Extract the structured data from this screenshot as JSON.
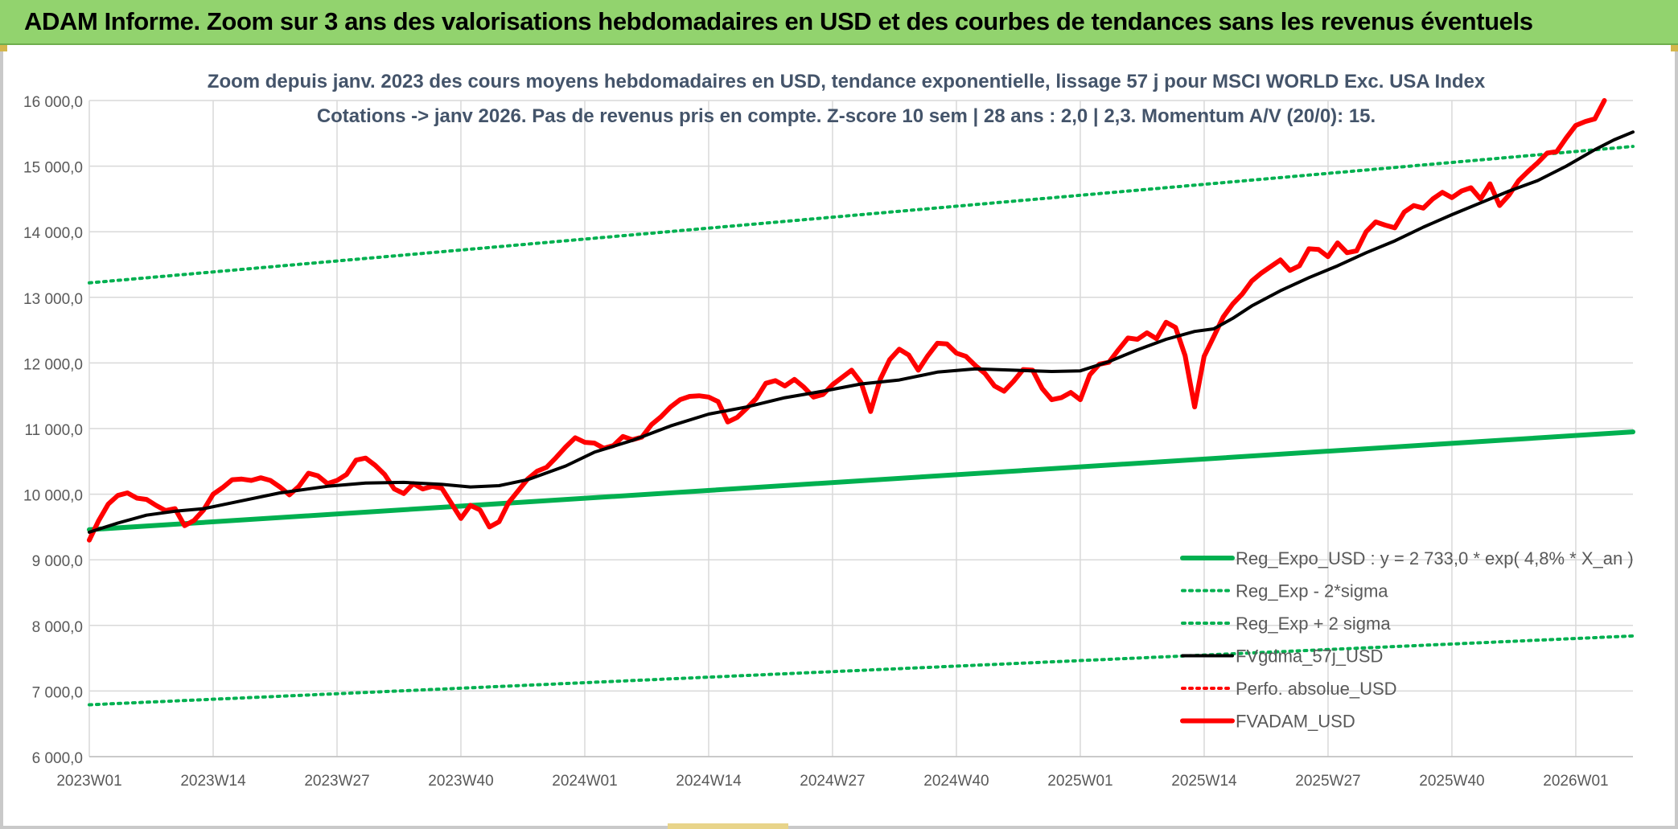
{
  "banner": {
    "title": "ADAM Informe. Zoom sur 3 ans des valorisations hebdomadaires en USD et des courbes de tendances sans les revenus éventuels"
  },
  "colors": {
    "banner_bg": "#92d36e",
    "regression": "#00b050",
    "smoothed": "#000000",
    "valuation": "#ff0000",
    "grid": "#d9d9d9",
    "axis_text": "#595959",
    "title_text": "#44546a"
  },
  "chart_data": {
    "type": "line",
    "title_line1": "Zoom depuis janv. 2023 des cours moyens hebdomadaires en USD, tendance exponentielle, lissage 57 j pour MSCI WORLD Exc. USA Index",
    "title_line2": "Cotations -> janv 2026. Pas de revenus pris en compte. Z-score 10 sem | 28 ans : 2,0 | 2,3. Momentum A/V (20/0): 15.",
    "ylim": [
      6000,
      16000
    ],
    "y_ticks": [
      6000,
      7000,
      8000,
      9000,
      10000,
      11000,
      12000,
      13000,
      14000,
      15000,
      16000
    ],
    "y_tick_labels": [
      "6 000,0",
      "7 000,0",
      "8 000,0",
      "9 000,0",
      "10 000,0",
      "11 000,0",
      "12 000,0",
      "13 000,0",
      "14 000,0",
      "15 000,0",
      "16 000,0"
    ],
    "x_range": [
      0,
      162
    ],
    "x_ticks": [
      {
        "index": 0,
        "label": "2023W01"
      },
      {
        "index": 13,
        "label": "2023W14"
      },
      {
        "index": 26,
        "label": "2023W27"
      },
      {
        "index": 39,
        "label": "2023W40"
      },
      {
        "index": 52,
        "label": "2024W01"
      },
      {
        "index": 65,
        "label": "2024W14"
      },
      {
        "index": 78,
        "label": "2024W27"
      },
      {
        "index": 91,
        "label": "2024W40"
      },
      {
        "index": 104,
        "label": "2025W01"
      },
      {
        "index": 117,
        "label": "2025W14"
      },
      {
        "index": 130,
        "label": "2025W27"
      },
      {
        "index": 143,
        "label": "2025W40"
      },
      {
        "index": 156,
        "label": "2026W01"
      }
    ],
    "legend_position": "bottom-right",
    "series": [
      {
        "name": "Reg_Expo_USD : y = 2 733,0 * exp( 4,8% *  X_an )",
        "style": "solid-thick",
        "color": "#00b050",
        "points": [
          [
            0,
            9460
          ],
          [
            162,
            10950
          ]
        ]
      },
      {
        "name": "Reg_Exp - 2*sigma",
        "style": "dotted",
        "color": "#00b050",
        "points": [
          [
            0,
            6790
          ],
          [
            162,
            7840
          ]
        ]
      },
      {
        "name": "Reg_Exp + 2 sigma",
        "style": "dotted",
        "color": "#00b050",
        "points": [
          [
            0,
            13220
          ],
          [
            162,
            15300
          ]
        ]
      },
      {
        "name": "FVgdma_57j_USD",
        "style": "solid",
        "color": "#000000",
        "points": [
          [
            0,
            9420
          ],
          [
            3,
            9560
          ],
          [
            6,
            9680
          ],
          [
            9,
            9740
          ],
          [
            12,
            9780
          ],
          [
            16,
            9900
          ],
          [
            20,
            10020
          ],
          [
            25,
            10120
          ],
          [
            29,
            10170
          ],
          [
            33,
            10180
          ],
          [
            37,
            10150
          ],
          [
            40,
            10110
          ],
          [
            43,
            10130
          ],
          [
            46,
            10220
          ],
          [
            50,
            10430
          ],
          [
            53,
            10640
          ],
          [
            57,
            10820
          ],
          [
            61,
            11040
          ],
          [
            65,
            11220
          ],
          [
            69,
            11330
          ],
          [
            73,
            11470
          ],
          [
            77,
            11570
          ],
          [
            81,
            11680
          ],
          [
            85,
            11740
          ],
          [
            89,
            11860
          ],
          [
            93,
            11910
          ],
          [
            97,
            11890
          ],
          [
            101,
            11870
          ],
          [
            104,
            11880
          ],
          [
            107,
            12020
          ],
          [
            110,
            12200
          ],
          [
            113,
            12360
          ],
          [
            116,
            12480
          ],
          [
            118,
            12520
          ],
          [
            120,
            12680
          ],
          [
            122,
            12870
          ],
          [
            125,
            13100
          ],
          [
            128,
            13300
          ],
          [
            131,
            13480
          ],
          [
            134,
            13680
          ],
          [
            137,
            13860
          ],
          [
            140,
            14070
          ],
          [
            143,
            14260
          ],
          [
            146,
            14440
          ],
          [
            149,
            14620
          ],
          [
            152,
            14780
          ],
          [
            155,
            15000
          ],
          [
            158,
            15250
          ],
          [
            160,
            15400
          ],
          [
            162,
            15520
          ]
        ]
      },
      {
        "name": "Perfo. absolue_USD",
        "style": "dotted",
        "color": "#ff0000",
        "points": []
      },
      {
        "name": "FVADAM_USD",
        "style": "solid-thick",
        "color": "#ff0000",
        "points": [
          [
            0,
            9300
          ],
          [
            1,
            9600
          ],
          [
            2,
            9850
          ],
          [
            3,
            9980
          ],
          [
            4,
            10020
          ],
          [
            5,
            9940
          ],
          [
            6,
            9920
          ],
          [
            7,
            9830
          ],
          [
            8,
            9750
          ],
          [
            9,
            9780
          ],
          [
            10,
            9520
          ],
          [
            11,
            9600
          ],
          [
            12,
            9760
          ],
          [
            13,
            10000
          ],
          [
            14,
            10100
          ],
          [
            15,
            10220
          ],
          [
            16,
            10230
          ],
          [
            17,
            10210
          ],
          [
            18,
            10250
          ],
          [
            19,
            10210
          ],
          [
            20,
            10110
          ],
          [
            21,
            9990
          ],
          [
            22,
            10120
          ],
          [
            23,
            10320
          ],
          [
            24,
            10280
          ],
          [
            25,
            10160
          ],
          [
            26,
            10210
          ],
          [
            27,
            10300
          ],
          [
            28,
            10520
          ],
          [
            29,
            10550
          ],
          [
            30,
            10440
          ],
          [
            31,
            10300
          ],
          [
            32,
            10080
          ],
          [
            33,
            10010
          ],
          [
            34,
            10160
          ],
          [
            35,
            10080
          ],
          [
            36,
            10120
          ],
          [
            37,
            10090
          ],
          [
            38,
            9860
          ],
          [
            39,
            9630
          ],
          [
            40,
            9830
          ],
          [
            41,
            9760
          ],
          [
            42,
            9500
          ],
          [
            43,
            9580
          ],
          [
            44,
            9870
          ],
          [
            45,
            10050
          ],
          [
            46,
            10230
          ],
          [
            47,
            10350
          ],
          [
            48,
            10410
          ],
          [
            49,
            10560
          ],
          [
            50,
            10720
          ],
          [
            51,
            10860
          ],
          [
            52,
            10790
          ],
          [
            53,
            10780
          ],
          [
            54,
            10700
          ],
          [
            55,
            10740
          ],
          [
            56,
            10880
          ],
          [
            57,
            10830
          ],
          [
            58,
            10870
          ],
          [
            59,
            11060
          ],
          [
            60,
            11180
          ],
          [
            61,
            11330
          ],
          [
            62,
            11440
          ],
          [
            63,
            11490
          ],
          [
            64,
            11500
          ],
          [
            65,
            11480
          ],
          [
            66,
            11410
          ],
          [
            67,
            11100
          ],
          [
            68,
            11170
          ],
          [
            69,
            11310
          ],
          [
            70,
            11460
          ],
          [
            71,
            11690
          ],
          [
            72,
            11730
          ],
          [
            73,
            11650
          ],
          [
            74,
            11750
          ],
          [
            75,
            11630
          ],
          [
            76,
            11480
          ],
          [
            77,
            11520
          ],
          [
            78,
            11670
          ],
          [
            79,
            11780
          ],
          [
            80,
            11890
          ],
          [
            81,
            11700
          ],
          [
            82,
            11260
          ],
          [
            83,
            11750
          ],
          [
            84,
            12050
          ],
          [
            85,
            12210
          ],
          [
            86,
            12120
          ],
          [
            87,
            11890
          ],
          [
            88,
            12110
          ],
          [
            89,
            12300
          ],
          [
            90,
            12290
          ],
          [
            91,
            12150
          ],
          [
            92,
            12100
          ],
          [
            93,
            11960
          ],
          [
            94,
            11840
          ],
          [
            95,
            11650
          ],
          [
            96,
            11570
          ],
          [
            97,
            11720
          ],
          [
            98,
            11900
          ],
          [
            99,
            11890
          ],
          [
            100,
            11610
          ],
          [
            101,
            11440
          ],
          [
            102,
            11470
          ],
          [
            103,
            11550
          ],
          [
            104,
            11440
          ],
          [
            105,
            11820
          ],
          [
            106,
            11980
          ],
          [
            107,
            12010
          ],
          [
            108,
            12200
          ],
          [
            109,
            12380
          ],
          [
            110,
            12360
          ],
          [
            111,
            12460
          ],
          [
            112,
            12370
          ],
          [
            113,
            12620
          ],
          [
            114,
            12540
          ],
          [
            115,
            12110
          ],
          [
            116,
            11330
          ],
          [
            117,
            12100
          ],
          [
            118,
            12400
          ],
          [
            119,
            12700
          ],
          [
            120,
            12900
          ],
          [
            121,
            13050
          ],
          [
            122,
            13250
          ],
          [
            123,
            13370
          ],
          [
            124,
            13470
          ],
          [
            125,
            13570
          ],
          [
            126,
            13410
          ],
          [
            127,
            13480
          ],
          [
            128,
            13740
          ],
          [
            129,
            13730
          ],
          [
            130,
            13620
          ],
          [
            131,
            13830
          ],
          [
            132,
            13680
          ],
          [
            133,
            13710
          ],
          [
            134,
            14000
          ],
          [
            135,
            14150
          ],
          [
            136,
            14100
          ],
          [
            137,
            14060
          ],
          [
            138,
            14300
          ],
          [
            139,
            14400
          ],
          [
            140,
            14360
          ],
          [
            141,
            14500
          ],
          [
            142,
            14600
          ],
          [
            143,
            14520
          ],
          [
            144,
            14620
          ],
          [
            145,
            14670
          ],
          [
            146,
            14500
          ],
          [
            147,
            14730
          ],
          [
            148,
            14400
          ],
          [
            149,
            14560
          ],
          [
            150,
            14780
          ],
          [
            151,
            14920
          ],
          [
            152,
            15050
          ],
          [
            153,
            15200
          ],
          [
            154,
            15220
          ],
          [
            155,
            15430
          ],
          [
            156,
            15620
          ],
          [
            157,
            15680
          ],
          [
            158,
            15720
          ],
          [
            159,
            16000
          ]
        ]
      }
    ]
  }
}
